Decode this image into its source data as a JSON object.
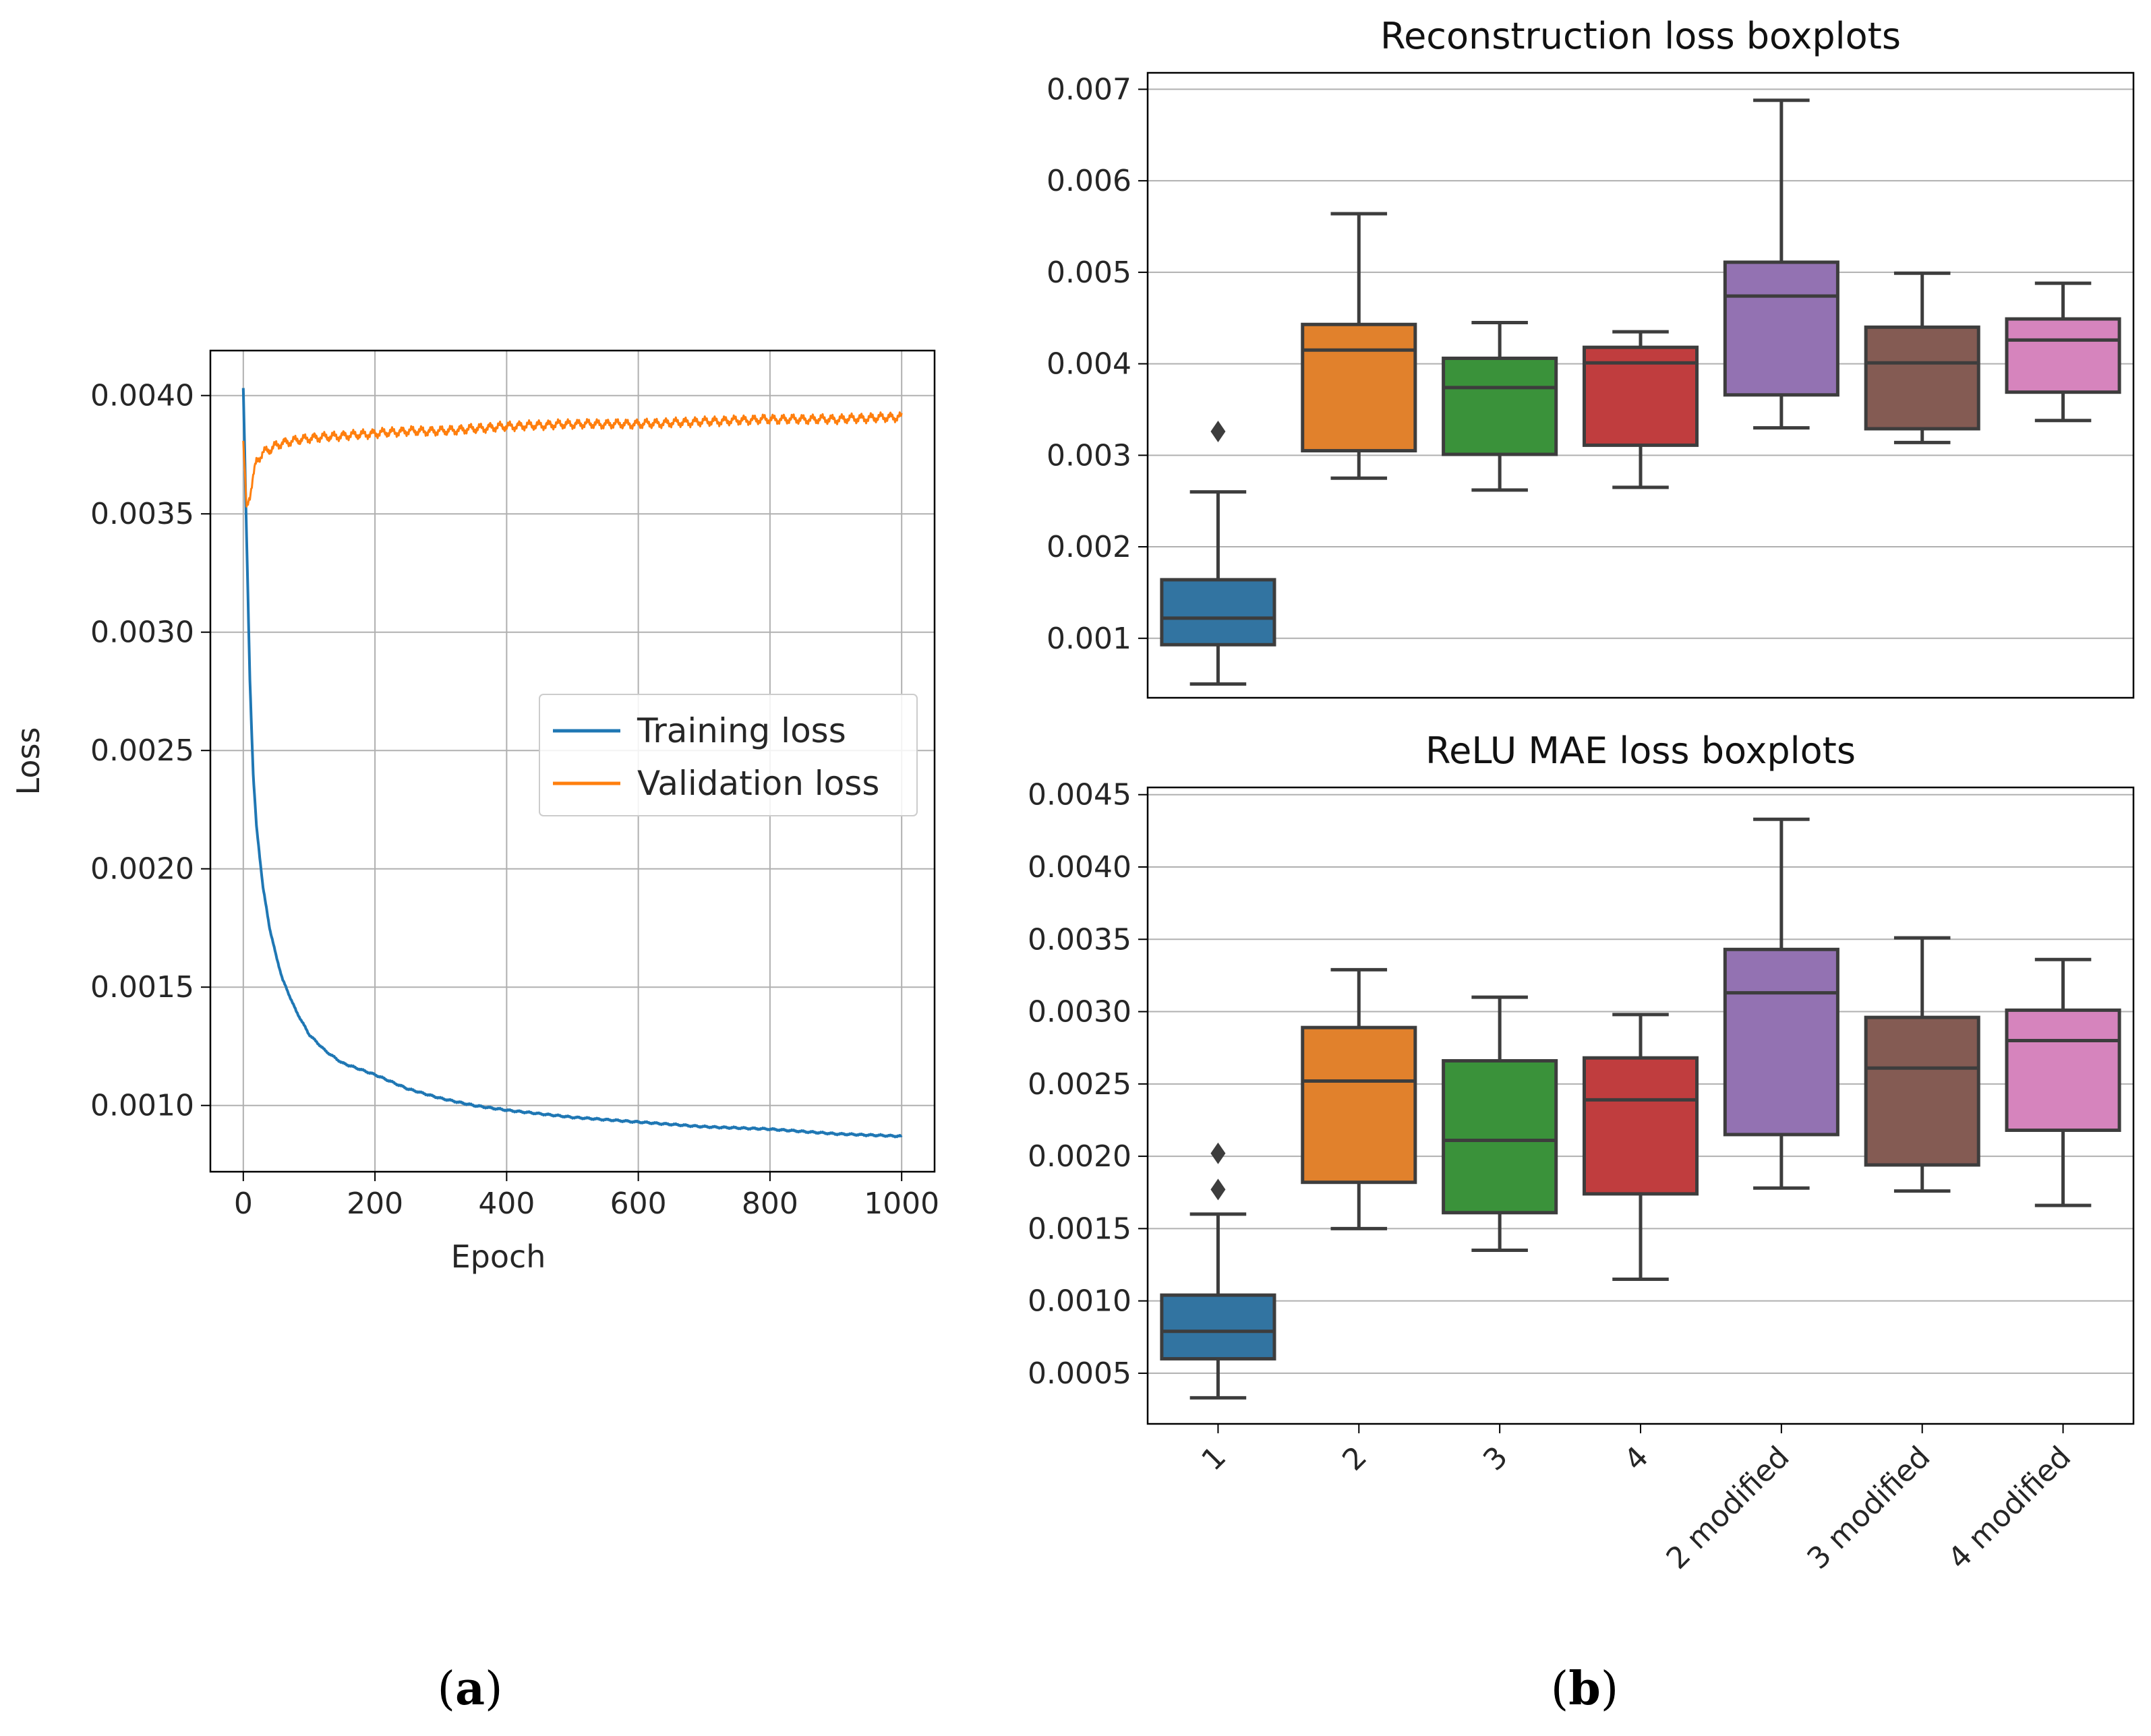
{
  "panel_labels": {
    "a_paren_open": "(",
    "a": "a",
    "a_paren_close": ")",
    "b_paren_open": "(",
    "b": "b",
    "b_paren_close": ")"
  },
  "colors": {
    "training": "#1f77b4",
    "validation": "#ff7f0e",
    "grid": "#b0b0b0",
    "box_edge": "#3d3d3d"
  },
  "chart_data": [
    {
      "id": "a",
      "type": "line",
      "title": "",
      "xlabel": "Epoch",
      "ylabel": "Loss",
      "xlim": [
        -50,
        1050
      ],
      "ylim": [
        0.00072,
        0.00419
      ],
      "xticks": [
        0,
        200,
        400,
        600,
        800,
        1000
      ],
      "xtick_labels": [
        "0",
        "200",
        "400",
        "600",
        "800",
        "1000"
      ],
      "yticks": [
        0.001,
        0.0015,
        0.002,
        0.0025,
        0.003,
        0.0035,
        0.004
      ],
      "ytick_labels": [
        "0.0010",
        "0.0015",
        "0.0020",
        "0.0025",
        "0.0030",
        "0.0035",
        "0.0040"
      ],
      "grid": true,
      "legend": "center-right",
      "series": [
        {
          "name": "Training loss",
          "color": "#1f77b4",
          "x": [
            0,
            5,
            10,
            15,
            20,
            30,
            40,
            50,
            60,
            80,
            100,
            125,
            150,
            200,
            250,
            300,
            350,
            400,
            500,
            600,
            700,
            800,
            900,
            1000
          ],
          "y": [
            0.00403,
            0.0034,
            0.0028,
            0.0024,
            0.00218,
            0.00192,
            0.00175,
            0.00163,
            0.00153,
            0.0014,
            0.0013,
            0.00123,
            0.00118,
            0.00113,
            0.00107,
            0.00103,
            0.001,
            0.00098,
            0.00095,
            0.00093,
            0.00091,
            0.0009,
            0.00088,
            0.00087
          ]
        },
        {
          "name": "Validation loss",
          "color": "#ff7f0e",
          "x": [
            0,
            5,
            10,
            15,
            20,
            30,
            40,
            50,
            60,
            80,
            100,
            150,
            200,
            250,
            300,
            400,
            500,
            600,
            700,
            800,
            900,
            1000
          ],
          "y": [
            0.0038,
            0.00352,
            0.00358,
            0.00366,
            0.00372,
            0.00376,
            0.00377,
            0.00379,
            0.0038,
            0.00381,
            0.00382,
            0.00383,
            0.00384,
            0.00385,
            0.00385,
            0.00387,
            0.00388,
            0.00388,
            0.00389,
            0.0039,
            0.0039,
            0.00391
          ]
        }
      ]
    },
    {
      "id": "b-top",
      "type": "box",
      "title": "Reconstruction loss boxplots",
      "xlabel": "",
      "ylabel": "",
      "ylim": [
        0.00035,
        0.00718
      ],
      "yticks": [
        0.001,
        0.002,
        0.003,
        0.004,
        0.005,
        0.006,
        0.007
      ],
      "ytick_labels": [
        "0.001",
        "0.002",
        "0.003",
        "0.004",
        "0.005",
        "0.006",
        "0.007"
      ],
      "grid": true,
      "categories": [
        "1",
        "2",
        "3",
        "4",
        "2 modified",
        "3 modified",
        "4 modified"
      ],
      "colors": [
        "#3274a1",
        "#e1812c",
        "#3a923a",
        "#c03d3e",
        "#9372b2",
        "#845b53",
        "#d684bd"
      ],
      "boxes": [
        {
          "min": 0.0005,
          "q1": 0.00093,
          "median": 0.00122,
          "q3": 0.00164,
          "max": 0.0026,
          "outliers": [
            0.00326
          ]
        },
        {
          "min": 0.00275,
          "q1": 0.00305,
          "median": 0.00415,
          "q3": 0.00443,
          "max": 0.00564,
          "outliers": []
        },
        {
          "min": 0.00262,
          "q1": 0.00301,
          "median": 0.00374,
          "q3": 0.00406,
          "max": 0.00445,
          "outliers": []
        },
        {
          "min": 0.00265,
          "q1": 0.00311,
          "median": 0.00401,
          "q3": 0.00418,
          "max": 0.00435,
          "outliers": []
        },
        {
          "min": 0.0033,
          "q1": 0.00366,
          "median": 0.00474,
          "q3": 0.00511,
          "max": 0.00688,
          "outliers": []
        },
        {
          "min": 0.00314,
          "q1": 0.00329,
          "median": 0.00401,
          "q3": 0.0044,
          "max": 0.00499,
          "outliers": []
        },
        {
          "min": 0.00338,
          "q1": 0.00369,
          "median": 0.00426,
          "q3": 0.00449,
          "max": 0.00488,
          "outliers": []
        }
      ]
    },
    {
      "id": "b-bottom",
      "type": "box",
      "title": "ReLU MAE loss boxplots",
      "xlabel": "",
      "ylabel": "",
      "ylim": [
        0.00015,
        0.00455
      ],
      "yticks": [
        0.0005,
        0.001,
        0.0015,
        0.002,
        0.0025,
        0.003,
        0.0035,
        0.004,
        0.0045
      ],
      "ytick_labels": [
        "0.0005",
        "0.0010",
        "0.0015",
        "0.0020",
        "0.0025",
        "0.0030",
        "0.0035",
        "0.0040",
        "0.0045"
      ],
      "grid": true,
      "categories": [
        "1",
        "2",
        "3",
        "4",
        "2 modified",
        "3 modified",
        "4 modified"
      ],
      "colors": [
        "#3274a1",
        "#e1812c",
        "#3a923a",
        "#c03d3e",
        "#9372b2",
        "#845b53",
        "#d684bd"
      ],
      "boxes": [
        {
          "min": 0.00033,
          "q1": 0.0006,
          "median": 0.00079,
          "q3": 0.00104,
          "max": 0.0016,
          "outliers": [
            0.00177,
            0.00202
          ]
        },
        {
          "min": 0.0015,
          "q1": 0.00182,
          "median": 0.00252,
          "q3": 0.00289,
          "max": 0.00329,
          "outliers": []
        },
        {
          "min": 0.00135,
          "q1": 0.00161,
          "median": 0.00211,
          "q3": 0.00266,
          "max": 0.0031,
          "outliers": []
        },
        {
          "min": 0.00115,
          "q1": 0.00174,
          "median": 0.00239,
          "q3": 0.00268,
          "max": 0.00298,
          "outliers": []
        },
        {
          "min": 0.00178,
          "q1": 0.00215,
          "median": 0.00313,
          "q3": 0.00343,
          "max": 0.00433,
          "outliers": []
        },
        {
          "min": 0.00176,
          "q1": 0.00194,
          "median": 0.00261,
          "q3": 0.00296,
          "max": 0.00351,
          "outliers": []
        },
        {
          "min": 0.00166,
          "q1": 0.00218,
          "median": 0.0028,
          "q3": 0.00301,
          "max": 0.00336,
          "outliers": []
        }
      ]
    }
  ]
}
